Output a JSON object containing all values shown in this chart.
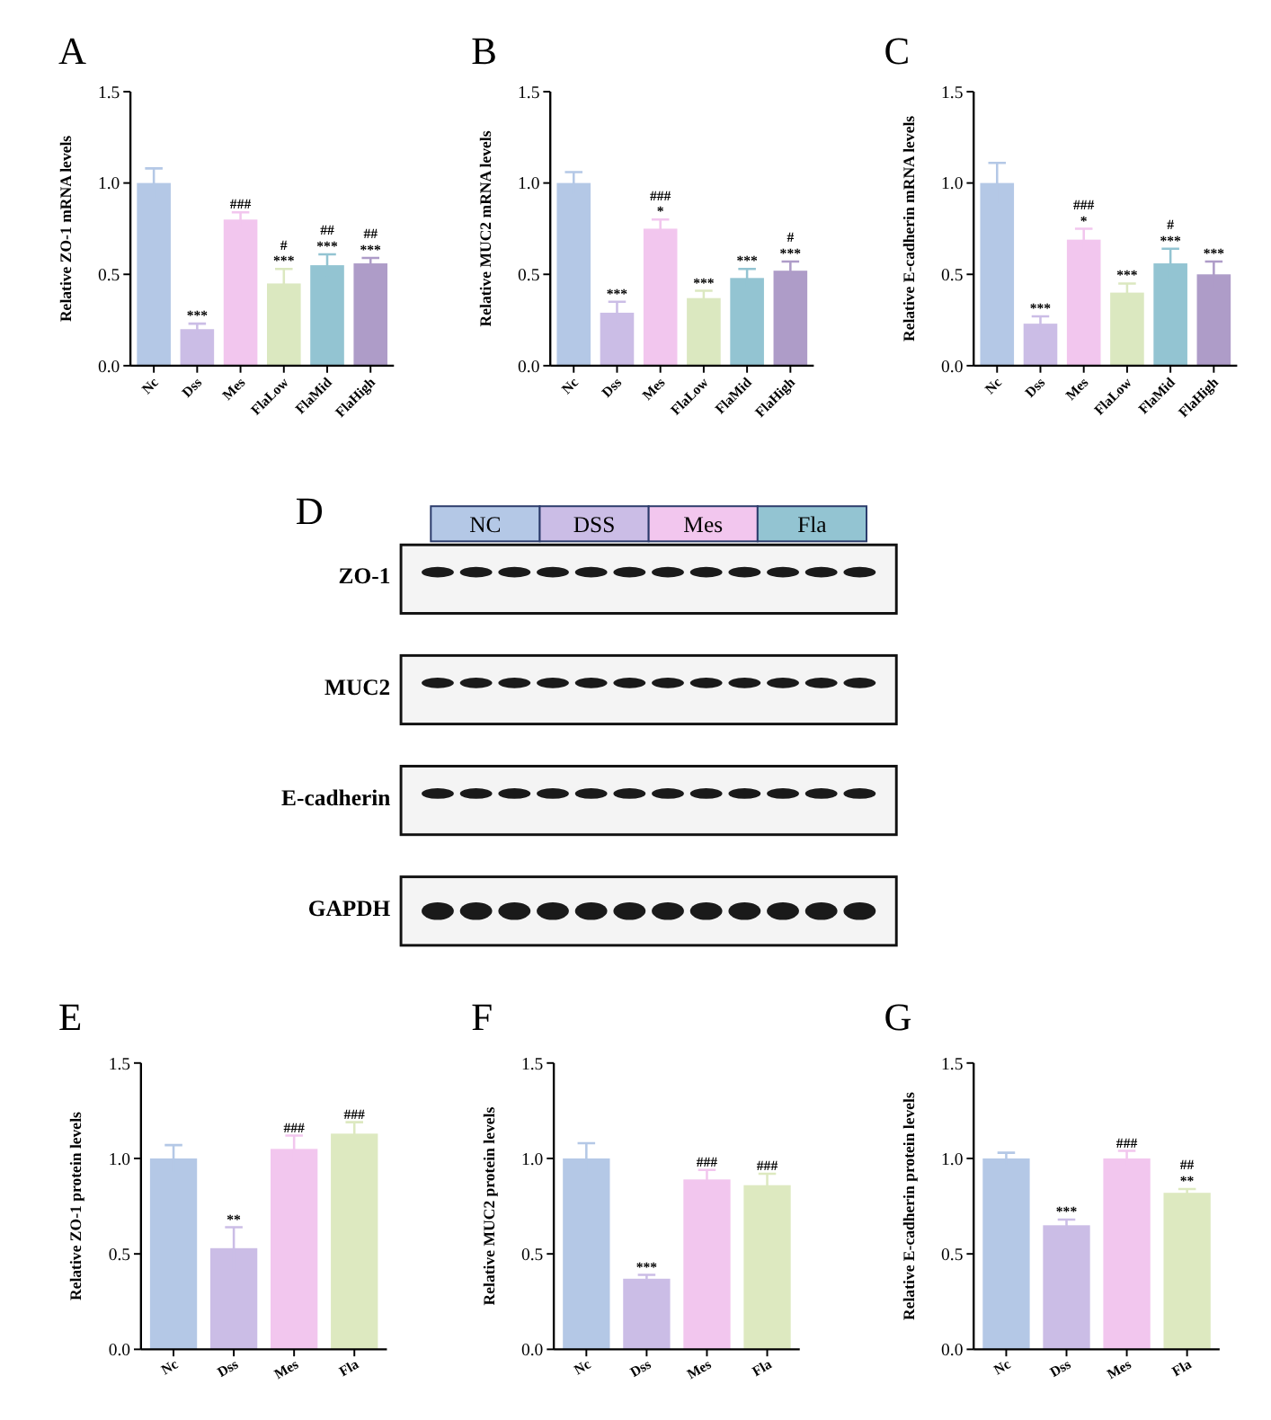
{
  "chart_data": [
    {
      "type": "bar",
      "title": "A",
      "ylabel": "Relative ZO-1 mRNA  levels",
      "categories": [
        "Nc",
        "Dss",
        "Mes",
        "FlaLow",
        "FlaMid",
        "FlaHigh"
      ],
      "values": [
        1.0,
        0.2,
        0.8,
        0.45,
        0.55,
        0.56
      ],
      "errors": [
        0.08,
        0.03,
        0.04,
        0.08,
        0.06,
        0.03
      ],
      "colors": [
        "#b4c8e6",
        "#cbbde6",
        "#f2c6ee",
        "#dbe8c0",
        "#93c4d2",
        "#ae9cc8"
      ],
      "ylim": [
        0,
        1.5
      ],
      "yticks": [
        {
          "value": 0,
          "label": "0.0"
        },
        {
          "value": 0.5,
          "label": "0.5"
        },
        {
          "value": 1,
          "label": "1.0"
        },
        {
          "value": 1.5,
          "label": "1.5"
        }
      ],
      "annotations": [
        {
          "text": "***",
          "x": "Dss",
          "y": 0.23
        },
        {
          "text": "###",
          "x": "Mes",
          "y": 0.84
        },
        {
          "text": "***",
          "x": "FlaLow",
          "y": 0.53
        },
        {
          "text": "#",
          "x": "FlaLow",
          "y": 0.53
        },
        {
          "text": "***",
          "x": "FlaMid",
          "y": 0.61
        },
        {
          "text": "##",
          "x": "FlaMid",
          "y": 0.61
        },
        {
          "text": "***",
          "x": "FlaHigh",
          "y": 0.59
        },
        {
          "text": "##",
          "x": "FlaHigh",
          "y": 0.59
        }
      ]
    },
    {
      "type": "bar",
      "title": "B",
      "ylabel": "Relative MUC2 mRNA  levels",
      "categories": [
        "Nc",
        "Dss",
        "Mes",
        "FlaLow",
        "FlaMid",
        "FlaHigh"
      ],
      "values": [
        1.0,
        0.29,
        0.75,
        0.37,
        0.48,
        0.52
      ],
      "errors": [
        0.06,
        0.06,
        0.05,
        0.04,
        0.05,
        0.05
      ],
      "colors": [
        "#b4c8e6",
        "#cbbde6",
        "#f2c6ee",
        "#dbe8c0",
        "#93c4d2",
        "#ae9cc8"
      ],
      "ylim": [
        0,
        1.5
      ],
      "yticks": [
        {
          "value": 0,
          "label": "0.0"
        },
        {
          "value": 0.5,
          "label": "0.5"
        },
        {
          "value": 1,
          "label": "1.0"
        },
        {
          "value": 1.5,
          "label": "1.5"
        }
      ],
      "annotations": [
        {
          "text": "***",
          "x": "Dss",
          "y": 0.35
        },
        {
          "text": "*",
          "x": "Mes",
          "y": 0.8
        },
        {
          "text": "###",
          "x": "Mes",
          "y": 0.8
        },
        {
          "text": "***",
          "x": "FlaLow",
          "y": 0.41
        },
        {
          "text": "***",
          "x": "FlaMid",
          "y": 0.53
        },
        {
          "text": "***",
          "x": "FlaHigh",
          "y": 0.57
        },
        {
          "text": "#",
          "x": "FlaHigh",
          "y": 0.57
        }
      ]
    },
    {
      "type": "bar",
      "title": "C",
      "ylabel": "Relative E-cadherin mRNA  levels",
      "categories": [
        "Nc",
        "Dss",
        "Mes",
        "FlaLow",
        "FlaMid",
        "FlaHigh"
      ],
      "values": [
        1.0,
        0.23,
        0.69,
        0.4,
        0.56,
        0.5
      ],
      "errors": [
        0.11,
        0.04,
        0.06,
        0.05,
        0.08,
        0.07
      ],
      "colors": [
        "#b4c8e6",
        "#cbbde6",
        "#f2c6ee",
        "#dbe8c0",
        "#93c4d2",
        "#ae9cc8"
      ],
      "ylim": [
        0,
        1.5
      ],
      "yticks": [
        {
          "value": 0,
          "label": "0.0"
        },
        {
          "value": 0.5,
          "label": "0.5"
        },
        {
          "value": 1,
          "label": "1.0"
        },
        {
          "value": 1.5,
          "label": "1.5"
        }
      ],
      "annotations": [
        {
          "text": "***",
          "x": "Dss",
          "y": 0.27
        },
        {
          "text": "*",
          "x": "Mes",
          "y": 0.75
        },
        {
          "text": "###",
          "x": "Mes",
          "y": 0.75
        },
        {
          "text": "***",
          "x": "FlaLow",
          "y": 0.45
        },
        {
          "text": "***",
          "x": "FlaMid",
          "y": 0.64
        },
        {
          "text": "#",
          "x": "FlaMid",
          "y": 0.64
        },
        {
          "text": "***",
          "x": "FlaHigh",
          "y": 0.57
        }
      ]
    },
    {
      "type": "other",
      "title": "D",
      "categories": [
        "NC",
        "DSS",
        "Mes",
        "Fla"
      ],
      "annotations": [
        "ZO-1",
        "MUC2",
        "E-cadherin",
        "GAPDH"
      ]
    },
    {
      "type": "bar",
      "title": "E",
      "ylabel": "Relative ZO-1 protein levels",
      "categories": [
        "Nc",
        "Dss",
        "Mes",
        "Fla"
      ],
      "values": [
        1.0,
        0.53,
        1.05,
        1.13
      ],
      "errors": [
        0.07,
        0.11,
        0.07,
        0.06
      ],
      "colors": [
        "#b4c8e6",
        "#cbbde6",
        "#f2c6ee",
        "#dde9c0"
      ],
      "ylim": [
        0,
        1.5
      ],
      "yticks": [
        {
          "value": 0,
          "label": "0.0"
        },
        {
          "value": 0.5,
          "label": "0.5"
        },
        {
          "value": 1,
          "label": "1.0"
        },
        {
          "value": 1.5,
          "label": "1.5"
        }
      ],
      "annotations": [
        {
          "text": "**",
          "x": "Dss",
          "y": 0.64
        },
        {
          "text": "###",
          "x": "Mes",
          "y": 1.12
        },
        {
          "text": "###",
          "x": "Fla",
          "y": 1.19
        }
      ]
    },
    {
      "type": "bar",
      "title": "F",
      "ylabel": "Relative MUC2 protein levels",
      "categories": [
        "Nc",
        "Dss",
        "Mes",
        "Fla"
      ],
      "values": [
        1.0,
        0.37,
        0.89,
        0.86
      ],
      "errors": [
        0.08,
        0.02,
        0.05,
        0.06
      ],
      "colors": [
        "#b4c8e6",
        "#cbbde6",
        "#f2c6ee",
        "#dde9c0"
      ],
      "ylim": [
        0,
        1.5
      ],
      "yticks": [
        {
          "value": 0,
          "label": "0.0"
        },
        {
          "value": 0.5,
          "label": "0.5"
        },
        {
          "value": 1,
          "label": "1.0"
        },
        {
          "value": 1.5,
          "label": "1.5"
        }
      ],
      "annotations": [
        {
          "text": "***",
          "x": "Dss",
          "y": 0.39
        },
        {
          "text": "###",
          "x": "Mes",
          "y": 0.94
        },
        {
          "text": "###",
          "x": "Fla",
          "y": 0.92
        }
      ]
    },
    {
      "type": "bar",
      "title": "G",
      "ylabel": "Relative E-cadherin protein levels",
      "categories": [
        "Nc",
        "Dss",
        "Mes",
        "Fla"
      ],
      "values": [
        1.0,
        0.65,
        1.0,
        0.82
      ],
      "errors": [
        0.03,
        0.03,
        0.04,
        0.02
      ],
      "colors": [
        "#b4c8e6",
        "#cbbde6",
        "#f2c6ee",
        "#dde9c0"
      ],
      "ylim": [
        0,
        1.5
      ],
      "yticks": [
        {
          "value": 0,
          "label": "0.0"
        },
        {
          "value": 0.5,
          "label": "0.5"
        },
        {
          "value": 1,
          "label": "1.0"
        },
        {
          "value": 1.5,
          "label": "1.5"
        }
      ],
      "annotations": [
        {
          "text": "***",
          "x": "Dss",
          "y": 0.68
        },
        {
          "text": "###",
          "x": "Mes",
          "y": 1.04
        },
        {
          "text": "**",
          "x": "Fla",
          "y": 0.84
        },
        {
          "text": "##",
          "x": "Fla",
          "y": 0.84
        }
      ]
    }
  ]
}
